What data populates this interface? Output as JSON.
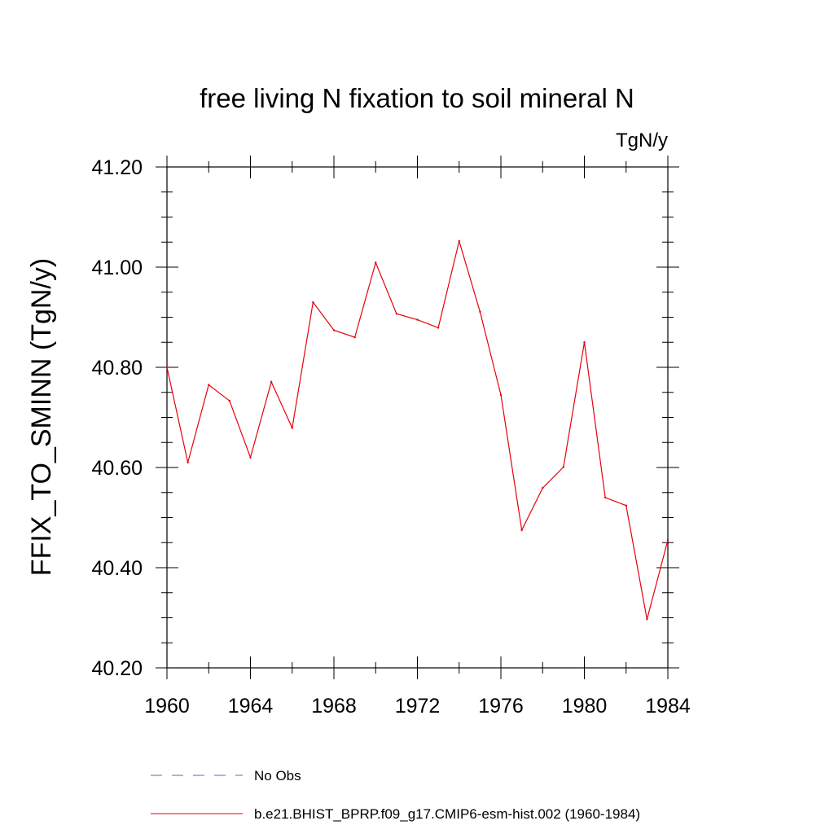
{
  "chart_data": {
    "type": "line",
    "title": "free living N fixation to soil mineral N",
    "units": "TgN/y",
    "ylabel": "FFIX_TO_SMINN  (TgN/y)",
    "xlabel": "",
    "xlim": [
      1960,
      1984
    ],
    "ylim": [
      40.2,
      41.2
    ],
    "x_ticks": [
      1960,
      1964,
      1968,
      1972,
      1976,
      1980,
      1984
    ],
    "x_tick_labels": [
      "1960",
      "1964",
      "1968",
      "1972",
      "1976",
      "1980",
      "1984"
    ],
    "y_ticks": [
      40.2,
      40.4,
      40.6,
      40.8,
      41.0,
      41.2
    ],
    "y_tick_labels": [
      "40.20",
      "40.40",
      "40.60",
      "40.80",
      "41.00",
      "41.20"
    ],
    "grid": false,
    "legend_position": "bottom",
    "series": [
      {
        "name": "b.e21.BHIST_BPRP.f09_g17.CMIP6-esm-hist.002 (1960-1984)",
        "color": "#e8000b",
        "style": "solid",
        "x": [
          1960,
          1961,
          1962,
          1963,
          1964,
          1965,
          1966,
          1967,
          1968,
          1969,
          1970,
          1971,
          1972,
          1973,
          1974,
          1975,
          1976,
          1977,
          1978,
          1979,
          1980,
          1981,
          1982,
          1983,
          1984
        ],
        "values": [
          40.8,
          40.61,
          40.765,
          40.733,
          40.62,
          40.771,
          40.679,
          40.93,
          40.874,
          40.86,
          41.009,
          40.907,
          40.895,
          40.879,
          41.052,
          40.911,
          40.745,
          40.475,
          40.559,
          40.601,
          40.85,
          40.54,
          40.524,
          40.297,
          40.455
        ]
      },
      {
        "name": "No Obs",
        "color": "#6060c0",
        "style": "dashed",
        "x": [],
        "values": []
      }
    ]
  }
}
